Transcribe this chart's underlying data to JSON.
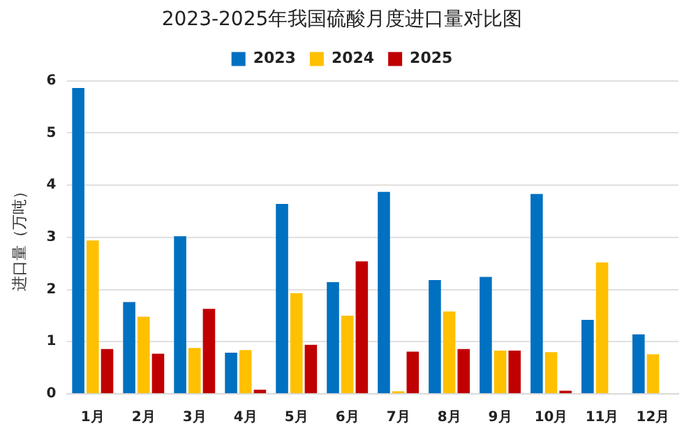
{
  "chart_data": {
    "type": "bar",
    "title": "2023-2025年我国硫酸月度进口量对比图",
    "ylabel": "进口量（万吨）",
    "categories": [
      "1月",
      "2月",
      "3月",
      "4月",
      "5月",
      "6月",
      "7月",
      "8月",
      "9月",
      "10月",
      "11月",
      "12月"
    ],
    "series": [
      {
        "name": "2023",
        "color": "#0070c0",
        "values": [
          5.86,
          1.76,
          3.02,
          0.79,
          3.64,
          2.14,
          3.87,
          2.18,
          2.24,
          3.83,
          1.42,
          1.14
        ]
      },
      {
        "name": "2024",
        "color": "#ffc000",
        "values": [
          2.94,
          1.48,
          0.88,
          0.84,
          1.93,
          1.5,
          0.05,
          1.58,
          0.83,
          0.8,
          2.52,
          0.76
        ]
      },
      {
        "name": "2025",
        "color": "#c00000",
        "values": [
          0.86,
          0.77,
          1.63,
          0.08,
          0.94,
          2.54,
          0.81,
          0.86,
          0.83,
          0.06,
          null,
          null
        ]
      }
    ],
    "ylim": [
      0,
      6
    ],
    "yticks": [
      0,
      1,
      2,
      3,
      4,
      5,
      6
    ],
    "grid": "y",
    "legend": "top"
  }
}
